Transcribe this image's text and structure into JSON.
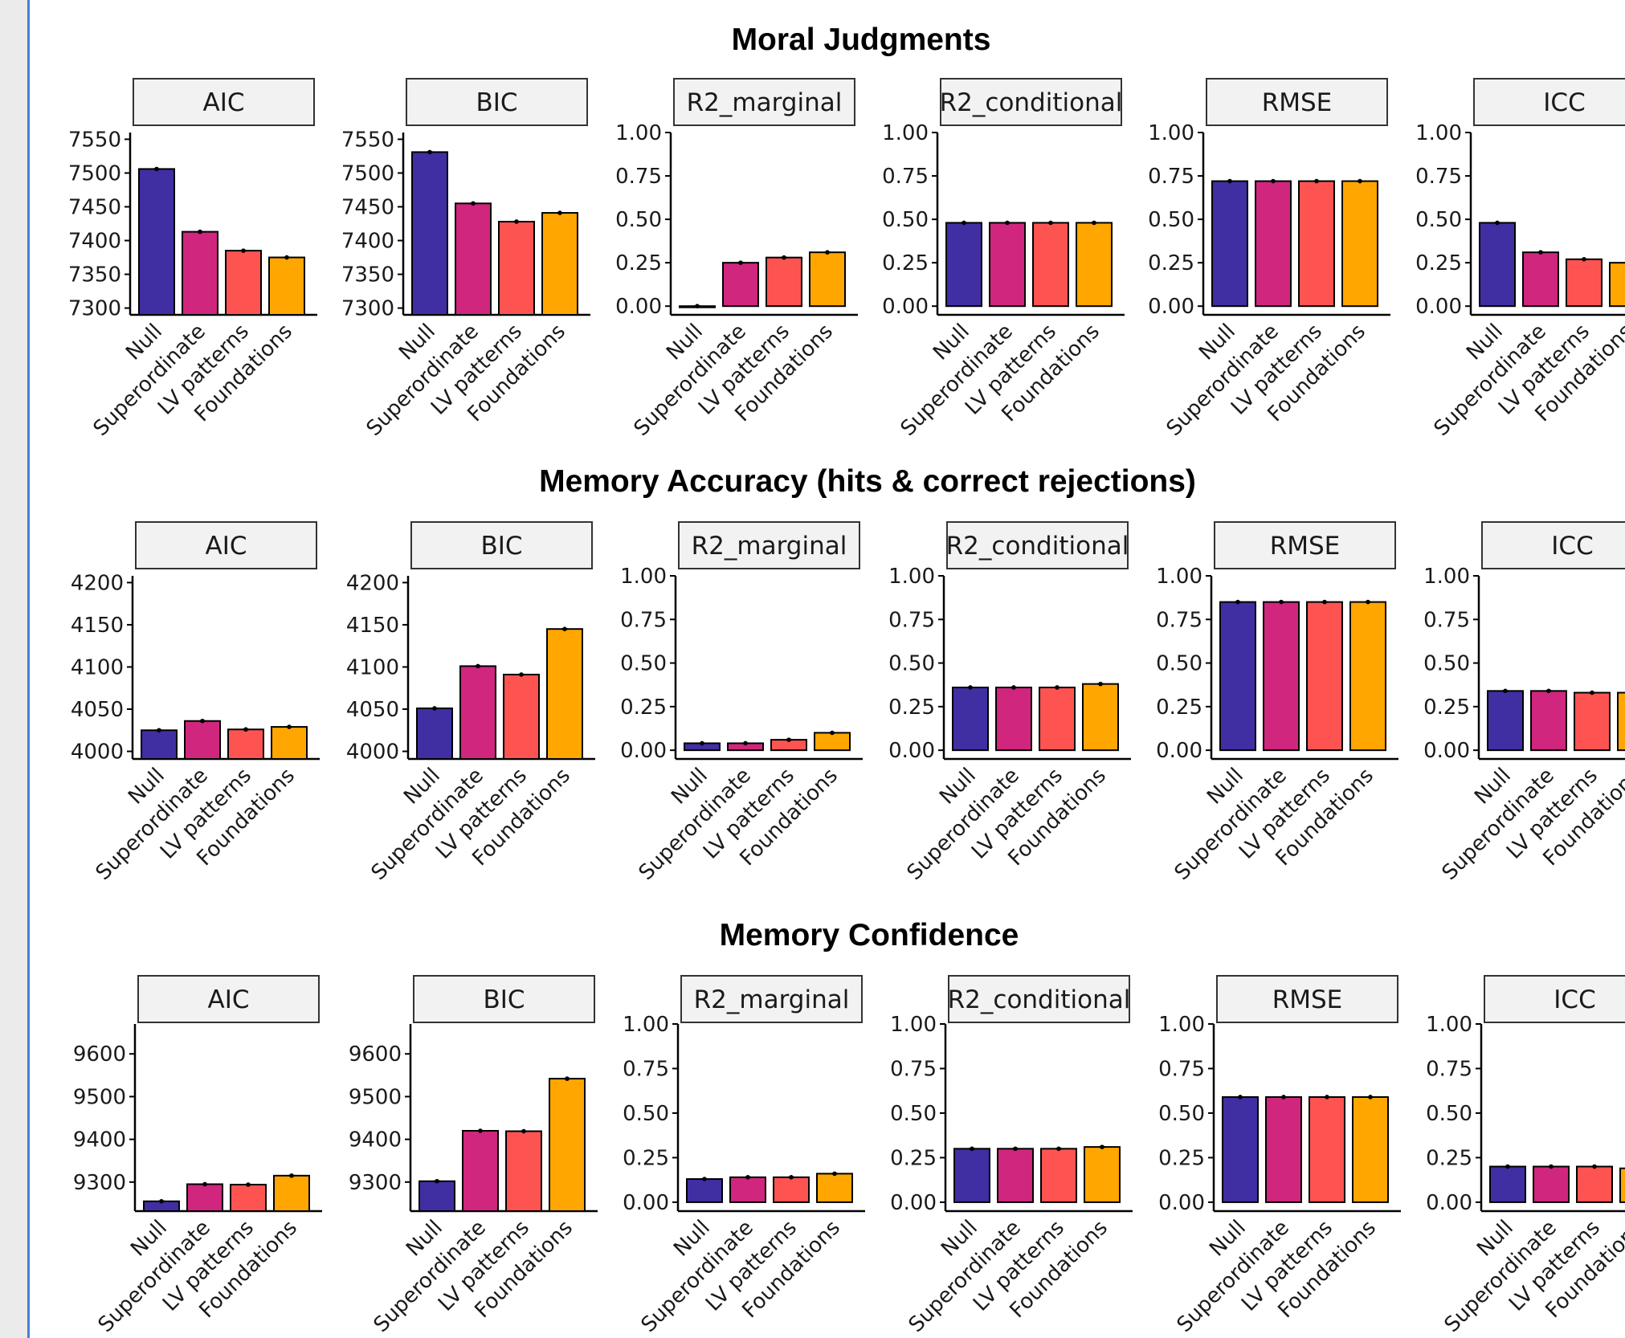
{
  "colors": {
    "Null": "#3f2fa3",
    "Superordinate": "#d0267e",
    "LV patterns": "#fd5452",
    "Foundations": "#ffa600",
    "strip_fill": "#f2f2f2",
    "axis": "#000000"
  },
  "chart_data": [
    {
      "type": "bar",
      "title": "Moral Judgments",
      "categories": [
        "Null",
        "Superordinate",
        "LV patterns",
        "Foundations"
      ],
      "panels": [
        {
          "name": "AIC",
          "ylim": [
            7290,
            7560
          ],
          "ticks": [
            7300,
            7350,
            7400,
            7450,
            7500,
            7550
          ],
          "values": [
            7506,
            7413,
            7385,
            7375
          ]
        },
        {
          "name": "BIC",
          "ylim": [
            7290,
            7560
          ],
          "ticks": [
            7300,
            7350,
            7400,
            7450,
            7500,
            7550
          ],
          "values": [
            7531,
            7455,
            7428,
            7441
          ]
        },
        {
          "name": "R2_marginal",
          "ylim": [
            -0.05,
            1.0
          ],
          "ticks": [
            "0.00",
            "0.25",
            "0.50",
            "0.75",
            "1.00"
          ],
          "values": [
            0.0,
            0.25,
            0.28,
            0.31
          ]
        },
        {
          "name": "R2_conditional",
          "ylim": [
            -0.05,
            1.0
          ],
          "ticks": [
            "0.00",
            "0.25",
            "0.50",
            "0.75",
            "1.00"
          ],
          "values": [
            0.48,
            0.48,
            0.48,
            0.48
          ]
        },
        {
          "name": "RMSE",
          "ylim": [
            -0.05,
            1.0
          ],
          "ticks": [
            "0.00",
            "0.25",
            "0.50",
            "0.75",
            "1.00"
          ],
          "values": [
            0.72,
            0.72,
            0.72,
            0.72
          ]
        },
        {
          "name": "ICC",
          "ylim": [
            -0.05,
            1.0
          ],
          "ticks": [
            "0.00",
            "0.25",
            "0.50",
            "0.75",
            "1.00"
          ],
          "values": [
            0.48,
            0.31,
            0.27,
            0.25
          ]
        }
      ]
    },
    {
      "type": "bar",
      "title": "Memory Accuracy (hits & correct rejections)",
      "categories": [
        "Null",
        "Superordinate",
        "LV patterns",
        "Foundations"
      ],
      "panels": [
        {
          "name": "AIC",
          "ylim": [
            3991,
            4208
          ],
          "ticks": [
            4000,
            4050,
            4100,
            4150,
            4200
          ],
          "values": [
            4025,
            4036,
            4026,
            4029
          ]
        },
        {
          "name": "BIC",
          "ylim": [
            3991,
            4208
          ],
          "ticks": [
            4000,
            4050,
            4100,
            4150,
            4200
          ],
          "values": [
            4051,
            4101,
            4091,
            4145
          ]
        },
        {
          "name": "R2_marginal",
          "ylim": [
            -0.05,
            1.0
          ],
          "ticks": [
            "0.00",
            "0.25",
            "0.50",
            "0.75",
            "1.00"
          ],
          "values": [
            0.04,
            0.04,
            0.06,
            0.1
          ]
        },
        {
          "name": "R2_conditional",
          "ylim": [
            -0.05,
            1.0
          ],
          "ticks": [
            "0.00",
            "0.25",
            "0.50",
            "0.75",
            "1.00"
          ],
          "values": [
            0.36,
            0.36,
            0.36,
            0.38
          ]
        },
        {
          "name": "RMSE",
          "ylim": [
            -0.05,
            1.0
          ],
          "ticks": [
            "0.00",
            "0.25",
            "0.50",
            "0.75",
            "1.00"
          ],
          "values": [
            0.85,
            0.85,
            0.85,
            0.85
          ]
        },
        {
          "name": "ICC",
          "ylim": [
            -0.05,
            1.0
          ],
          "ticks": [
            "0.00",
            "0.25",
            "0.50",
            "0.75",
            "1.00"
          ],
          "values": [
            0.34,
            0.34,
            0.33,
            0.33
          ]
        }
      ]
    },
    {
      "type": "bar",
      "title": "Memory Confidence",
      "categories": [
        "Null",
        "Superordinate",
        "LV patterns",
        "Foundations"
      ],
      "panels": [
        {
          "name": "AIC",
          "ylim": [
            9232,
            9670
          ],
          "ticks": [
            9300,
            9400,
            9500,
            9600
          ],
          "values": [
            9255,
            9295,
            9294,
            9315
          ]
        },
        {
          "name": "BIC",
          "ylim": [
            9232,
            9670
          ],
          "ticks": [
            9300,
            9400,
            9500,
            9600
          ],
          "values": [
            9302,
            9420,
            9419,
            9542
          ]
        },
        {
          "name": "R2_marginal",
          "ylim": [
            -0.05,
            1.0
          ],
          "ticks": [
            "0.00",
            "0.25",
            "0.50",
            "0.75",
            "1.00"
          ],
          "values": [
            0.13,
            0.14,
            0.14,
            0.16
          ]
        },
        {
          "name": "R2_conditional",
          "ylim": [
            -0.05,
            1.0
          ],
          "ticks": [
            "0.00",
            "0.25",
            "0.50",
            "0.75",
            "1.00"
          ],
          "values": [
            0.3,
            0.3,
            0.3,
            0.31
          ]
        },
        {
          "name": "RMSE",
          "ylim": [
            -0.05,
            1.0
          ],
          "ticks": [
            "0.00",
            "0.25",
            "0.50",
            "0.75",
            "1.00"
          ],
          "values": [
            0.59,
            0.59,
            0.59,
            0.59
          ]
        },
        {
          "name": "ICC",
          "ylim": [
            -0.05,
            1.0
          ],
          "ticks": [
            "0.00",
            "0.25",
            "0.50",
            "0.75",
            "1.00"
          ],
          "values": [
            0.2,
            0.2,
            0.2,
            0.19
          ]
        }
      ]
    }
  ]
}
